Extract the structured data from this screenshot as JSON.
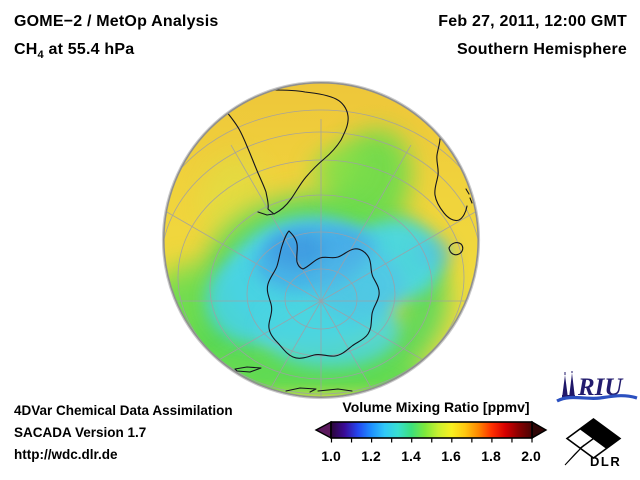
{
  "header": {
    "product_line": "GOME−2 / MetOp Analysis",
    "species_prefix": "CH",
    "species_subscript": "4",
    "level_suffix": " at 55.4 hPa",
    "datetime": "Feb 27, 2011, 12:00 GMT",
    "region": "Southern Hemisphere"
  },
  "globe": {
    "description": "Orthographic Southern Hemisphere map of CH4 volume mixing ratio at 55.4 hPa",
    "field_colors": {
      "high_yellow": "#f0d53d",
      "mid_green": "#5ada55",
      "low_cyan": "#4dd7e3",
      "lowest_blue": "#46a5e6"
    }
  },
  "colorbar": {
    "title": "Volume Mixing Ratio [ppmv]",
    "tick_labels": [
      "1.0",
      "1.2",
      "1.4",
      "1.6",
      "1.8",
      "2.0"
    ],
    "range_min": 1.0,
    "range_max": 2.0,
    "unit": "ppmv",
    "gradient_stops": [
      "#2b0636",
      "#3a0a96",
      "#2446f0",
      "#1e90ff",
      "#30c8f8",
      "#38e0d0",
      "#3ce07c",
      "#7ce83c",
      "#c8f030",
      "#f8f020",
      "#ffc810",
      "#ff8800",
      "#ff3000",
      "#d80000",
      "#8a0000",
      "#4a0404"
    ],
    "left_arrow_color": "#5c1a5e",
    "right_arrow_color": "#2e0505"
  },
  "footer": {
    "line1": "4DVar Chemical Data Assimilation",
    "line2": "SACADA Version 1.7",
    "line3": "http://wdc.dlr.de"
  },
  "logos": {
    "riu_label": "RIU",
    "dlr_label": "DLR"
  }
}
